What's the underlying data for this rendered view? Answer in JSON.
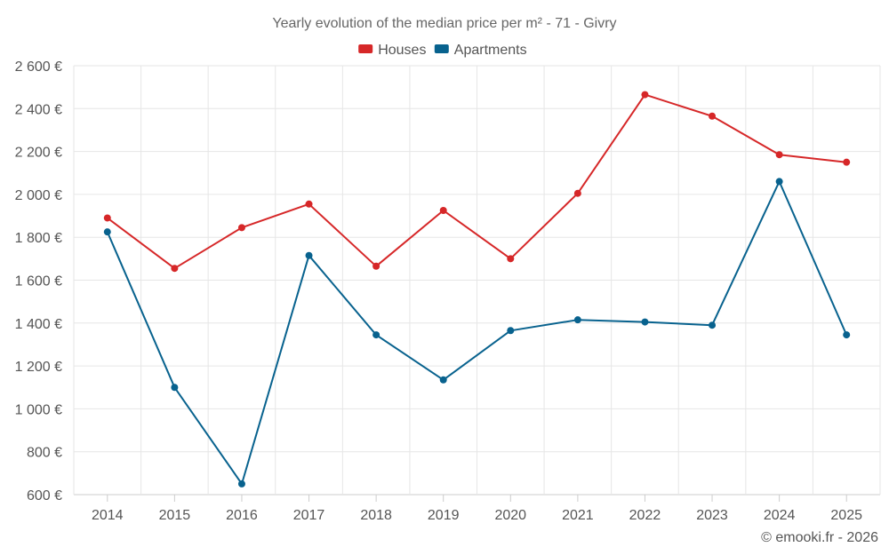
{
  "chart_data": {
    "type": "line",
    "title": "Yearly evolution of the median price per m² - 71 - Givry",
    "categories": [
      "2014",
      "2015",
      "2016",
      "2017",
      "2018",
      "2019",
      "2020",
      "2021",
      "2022",
      "2023",
      "2024",
      "2025"
    ],
    "series": [
      {
        "name": "Houses",
        "color": "#d62728",
        "values": [
          1890,
          1655,
          1845,
          1955,
          1665,
          1925,
          1700,
          2005,
          2465,
          2365,
          2185,
          2150
        ]
      },
      {
        "name": "Apartments",
        "color": "#08628e",
        "values": [
          1825,
          1100,
          650,
          1715,
          1345,
          1135,
          1365,
          1415,
          1405,
          1390,
          2060,
          1345
        ]
      }
    ],
    "ylim": [
      600,
      2600
    ],
    "yticks": [
      600,
      800,
      1000,
      1200,
      1400,
      1600,
      1800,
      2000,
      2200,
      2400,
      2600
    ],
    "ytick_labels": [
      "600 €",
      "800 €",
      "1 000 €",
      "1 200 €",
      "1 400 €",
      "1 600 €",
      "1 800 €",
      "2 000 €",
      "2 200 €",
      "2 400 €",
      "2 600 €"
    ],
    "xlabel": "",
    "ylabel": "",
    "grid": true,
    "legend": "top-center"
  },
  "credit": "© emooki.fr - 2026"
}
